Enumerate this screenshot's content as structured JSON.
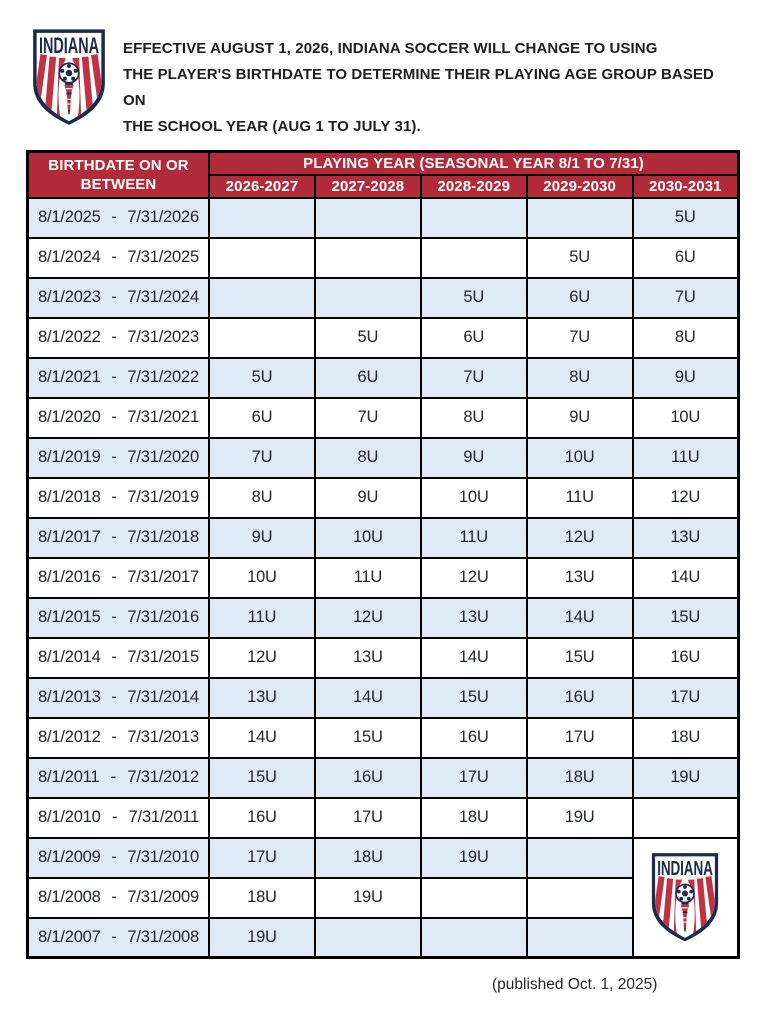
{
  "intro": {
    "lines": [
      "EFFECTIVE AUGUST 1, 2026, INDIANA SOCCER WILL CHANGE TO USING",
      "THE PLAYER'S BIRTHDATE TO DETERMINE THEIR PLAYING AGE GROUP BASED ON",
      "THE SCHOOL YEAR (AUG 1 TO JULY 31)."
    ]
  },
  "logo": {
    "text": "INDIANA"
  },
  "table": {
    "birthdate_header": {
      "line1": "BIRTHDATE ON OR",
      "line2": "BETWEEN"
    },
    "playing_year_header": "PLAYING YEAR (SEASONAL YEAR 8/1 TO 7/31)",
    "year_columns": [
      "2026-2027",
      "2027-2028",
      "2028-2029",
      "2029-2030",
      "2030-2031"
    ],
    "separator": "-",
    "rows": [
      {
        "from": "8/1/2025",
        "to": "7/31/2026",
        "values": [
          "",
          "",
          "",
          "",
          "5U"
        ]
      },
      {
        "from": "8/1/2024",
        "to": "7/31/2025",
        "values": [
          "",
          "",
          "",
          "5U",
          "6U"
        ]
      },
      {
        "from": "8/1/2023",
        "to": "7/31/2024",
        "values": [
          "",
          "",
          "5U",
          "6U",
          "7U"
        ]
      },
      {
        "from": "8/1/2022",
        "to": "7/31/2023",
        "values": [
          "",
          "5U",
          "6U",
          "7U",
          "8U"
        ]
      },
      {
        "from": "8/1/2021",
        "to": "7/31/2022",
        "values": [
          "5U",
          "6U",
          "7U",
          "8U",
          "9U"
        ]
      },
      {
        "from": "8/1/2020",
        "to": "7/31/2021",
        "values": [
          "6U",
          "7U",
          "8U",
          "9U",
          "10U"
        ]
      },
      {
        "from": "8/1/2019",
        "to": "7/31/2020",
        "values": [
          "7U",
          "8U",
          "9U",
          "10U",
          "11U"
        ]
      },
      {
        "from": "8/1/2018",
        "to": "7/31/2019",
        "values": [
          "8U",
          "9U",
          "10U",
          "11U",
          "12U"
        ]
      },
      {
        "from": "8/1/2017",
        "to": "7/31/2018",
        "values": [
          "9U",
          "10U",
          "11U",
          "12U",
          "13U"
        ]
      },
      {
        "from": "8/1/2016",
        "to": "7/31/2017",
        "values": [
          "10U",
          "11U",
          "12U",
          "13U",
          "14U"
        ]
      },
      {
        "from": "8/1/2015",
        "to": "7/31/2016",
        "values": [
          "11U",
          "12U",
          "13U",
          "14U",
          "15U"
        ]
      },
      {
        "from": "8/1/2014",
        "to": "7/31/2015",
        "values": [
          "12U",
          "13U",
          "14U",
          "15U",
          "16U"
        ]
      },
      {
        "from": "8/1/2013",
        "to": "7/31/2014",
        "values": [
          "13U",
          "14U",
          "15U",
          "16U",
          "17U"
        ]
      },
      {
        "from": "8/1/2012",
        "to": "7/31/2013",
        "values": [
          "14U",
          "15U",
          "16U",
          "17U",
          "18U"
        ]
      },
      {
        "from": "8/1/2011",
        "to": "7/31/2012",
        "values": [
          "15U",
          "16U",
          "17U",
          "18U",
          "19U"
        ]
      },
      {
        "from": "8/1/2010",
        "to": "7/31/2011",
        "values": [
          "16U",
          "17U",
          "18U",
          "19U",
          ""
        ]
      },
      {
        "from": "8/1/2009",
        "to": "7/31/2010",
        "values": [
          "17U",
          "18U",
          "19U",
          ""
        ],
        "logo_cell": true
      },
      {
        "from": "8/1/2008",
        "to": "7/31/2009",
        "values": [
          "18U",
          "19U",
          "",
          ""
        ]
      },
      {
        "from": "8/1/2007",
        "to": "7/31/2008",
        "values": [
          "19U",
          "",
          "",
          ""
        ]
      }
    ]
  },
  "footer": {
    "published": "(published Oct. 1, 2025)"
  },
  "colors": {
    "header_red": "#B12B3B",
    "row_blue": "#DEEAF6",
    "navy": "#1C2A4E",
    "logo_red": "#C13243"
  }
}
